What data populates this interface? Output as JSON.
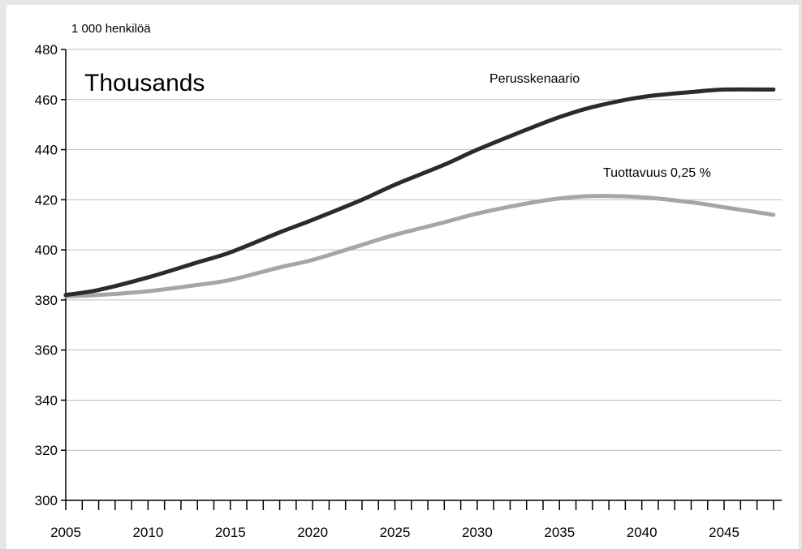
{
  "chart_data": {
    "type": "line",
    "ylabel": "1 000 henkilöä",
    "overlay_label": "Thousands",
    "xlim": [
      2005,
      2048.5
    ],
    "ylim": [
      300,
      480
    ],
    "y_ticks": [
      300,
      320,
      340,
      360,
      380,
      400,
      420,
      440,
      460,
      480
    ],
    "x_tick_labels": [
      2005,
      2010,
      2015,
      2020,
      2025,
      2030,
      2035,
      2040,
      2045
    ],
    "x_minor_ticks": [
      2005,
      2006,
      2007,
      2008,
      2009,
      2010,
      2011,
      2012,
      2013,
      2014,
      2015,
      2016,
      2017,
      2018,
      2019,
      2020,
      2021,
      2022,
      2023,
      2024,
      2025,
      2026,
      2027,
      2028,
      2029,
      2030,
      2031,
      2032,
      2033,
      2034,
      2035,
      2036,
      2037,
      2038,
      2039,
      2040,
      2041,
      2042,
      2043,
      2044,
      2045,
      2046,
      2047,
      2048
    ],
    "grid": "horizontal",
    "series": [
      {
        "name": "Perusskenaario",
        "color": "#2b2b2b",
        "x": [
          2005,
          2007,
          2010,
          2013,
          2015,
          2018,
          2020,
          2023,
          2025,
          2028,
          2030,
          2033,
          2035,
          2037,
          2040,
          2043,
          2045,
          2048
        ],
        "y": [
          382,
          384,
          389,
          395,
          399,
          407,
          412,
          420,
          426,
          434,
          440,
          448,
          453,
          457,
          461,
          463,
          464,
          464
        ]
      },
      {
        "name": "Tuottavuus 0,25 %",
        "color": "#a6a6a6",
        "x": [
          2005,
          2007,
          2010,
          2013,
          2015,
          2018,
          2020,
          2023,
          2025,
          2028,
          2030,
          2033,
          2035,
          2037,
          2040,
          2043,
          2045,
          2048
        ],
        "y": [
          381.5,
          382,
          383.5,
          386,
          388,
          393,
          396,
          402,
          406,
          411,
          414.5,
          418.5,
          420.5,
          421.5,
          421,
          419,
          417,
          414
        ]
      }
    ]
  }
}
